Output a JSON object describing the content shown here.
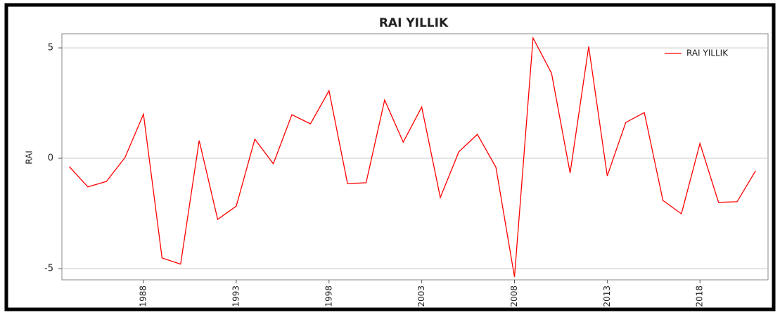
{
  "chart_data": {
    "type": "line",
    "title": "RAI YILLIK",
    "y_label": "RAI",
    "x": [
      1984,
      1985,
      1986,
      1987,
      1988,
      1989,
      1990,
      1991,
      1992,
      1993,
      1994,
      1995,
      1996,
      1997,
      1998,
      1999,
      2000,
      2001,
      2002,
      2003,
      2004,
      2005,
      2006,
      2007,
      2008,
      2009,
      2010,
      2011,
      2012,
      2013,
      2014,
      2015,
      2016,
      2017,
      2018,
      2019,
      2020,
      2021
    ],
    "series": [
      {
        "name": "RAI YILLIK",
        "color": "#ff0000",
        "values": [
          -0.38,
          -1.3,
          -1.05,
          0.03,
          2.0,
          -4.52,
          -4.8,
          0.8,
          -2.77,
          -2.17,
          0.86,
          -0.25,
          1.97,
          1.56,
          3.06,
          -1.15,
          -1.11,
          2.64,
          0.73,
          2.32,
          -1.78,
          0.29,
          1.08,
          -0.41,
          -5.38,
          5.45,
          3.85,
          -0.67,
          5.06,
          -0.8,
          1.62,
          2.07,
          -1.91,
          -2.52,
          0.67,
          -2.0,
          -1.97,
          -0.57
        ]
      }
    ],
    "xlim": [
      1983.6,
      2021.67
    ],
    "xticks": [
      1988,
      1993,
      1998,
      2003,
      2008,
      2013,
      2018
    ],
    "ylim": [
      -5.51,
      5.64
    ],
    "yticks": [
      -5,
      0,
      5
    ],
    "grid": true,
    "legend": "top-right"
  }
}
